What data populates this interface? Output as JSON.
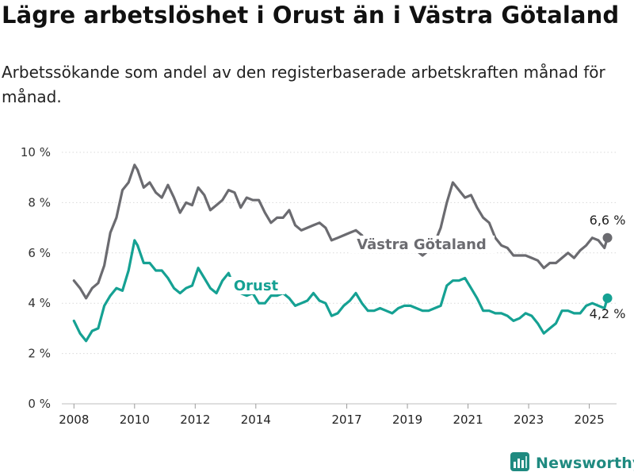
{
  "header": {
    "title": "Lägre arbetslöshet i Orust än i Västra Götaland",
    "subtitle": "Arbetssökande som andel av den registerbaserade arbetskraften månad för månad."
  },
  "brand": {
    "name": "Newsworthy",
    "icon": "bar-chart-logo-icon",
    "color": "#1f8a80"
  },
  "chart_data": {
    "type": "line",
    "title": "Lägre arbetslöshet i Orust än i Västra Götaland",
    "subtitle": "Arbetssökande som andel av den registerbaserade arbetskraften månad för månad.",
    "xlabel": "",
    "ylabel": "",
    "ylim": [
      0,
      10
    ],
    "xlim": [
      2007.6,
      2025.9
    ],
    "y_ticks": [
      {
        "value": 0,
        "label": "0 %"
      },
      {
        "value": 2,
        "label": "2 %"
      },
      {
        "value": 4,
        "label": "4 %"
      },
      {
        "value": 6,
        "label": "6 %"
      },
      {
        "value": 8,
        "label": "8 %"
      },
      {
        "value": 10,
        "label": "10 %"
      }
    ],
    "x_ticks": [
      {
        "value": 2008,
        "label": "2008"
      },
      {
        "value": 2010,
        "label": "2010"
      },
      {
        "value": 2012,
        "label": "2012"
      },
      {
        "value": 2014,
        "label": "2014"
      },
      {
        "value": 2017,
        "label": "2017"
      },
      {
        "value": 2019,
        "label": "2019"
      },
      {
        "value": 2021,
        "label": "2021"
      },
      {
        "value": 2023,
        "label": "2023"
      },
      {
        "value": 2025,
        "label": "2025"
      }
    ],
    "grid": true,
    "series": [
      {
        "name": "Västra Götaland",
        "color": "#6b6b70",
        "end_label": "6,6 %",
        "x": [
          2008.0,
          2008.2,
          2008.4,
          2008.6,
          2008.8,
          2009.0,
          2009.2,
          2009.4,
          2009.6,
          2009.8,
          2010.0,
          2010.1,
          2010.3,
          2010.5,
          2010.7,
          2010.9,
          2011.1,
          2011.3,
          2011.5,
          2011.7,
          2011.9,
          2012.1,
          2012.3,
          2012.5,
          2012.7,
          2012.9,
          2013.1,
          2013.3,
          2013.5,
          2013.7,
          2013.9,
          2014.1,
          2014.3,
          2014.5,
          2014.7,
          2014.9,
          2015.1,
          2015.3,
          2015.5,
          2015.7,
          2015.9,
          2016.1,
          2016.3,
          2016.5,
          2016.7,
          2016.9,
          2017.1,
          2017.3,
          2017.5,
          2017.7,
          2017.9,
          2018.1,
          2018.3,
          2018.5,
          2018.7,
          2018.9,
          2019.1,
          2019.3,
          2019.5,
          2019.7,
          2019.9,
          2020.1,
          2020.3,
          2020.5,
          2020.7,
          2020.9,
          2021.1,
          2021.3,
          2021.5,
          2021.7,
          2021.9,
          2022.1,
          2022.3,
          2022.5,
          2022.7,
          2022.9,
          2023.1,
          2023.3,
          2023.5,
          2023.7,
          2023.9,
          2024.1,
          2024.3,
          2024.5,
          2024.7,
          2024.9,
          2025.1,
          2025.3,
          2025.5,
          2025.6
        ],
        "values": [
          4.9,
          4.6,
          4.2,
          4.6,
          4.8,
          5.5,
          6.8,
          7.4,
          8.5,
          8.8,
          9.5,
          9.3,
          8.6,
          8.8,
          8.4,
          8.2,
          8.7,
          8.2,
          7.6,
          8.0,
          7.9,
          8.6,
          8.3,
          7.7,
          7.9,
          8.1,
          8.5,
          8.4,
          7.8,
          8.2,
          8.1,
          8.1,
          7.6,
          7.2,
          7.4,
          7.4,
          7.7,
          7.1,
          6.9,
          7.0,
          7.1,
          7.2,
          7.0,
          6.5,
          6.6,
          6.7,
          6.8,
          6.9,
          6.7,
          6.2,
          6.2,
          6.5,
          6.6,
          6.1,
          6.2,
          6.1,
          6.3,
          6.1,
          5.9,
          6.1,
          6.4,
          7.0,
          8.0,
          8.8,
          8.5,
          8.2,
          8.3,
          7.8,
          7.4,
          7.2,
          6.6,
          6.3,
          6.2,
          5.9,
          5.9,
          5.9,
          5.8,
          5.7,
          5.4,
          5.6,
          5.6,
          5.8,
          6.0,
          5.8,
          6.1,
          6.3,
          6.6,
          6.5,
          6.2,
          6.6
        ]
      },
      {
        "name": "Orust",
        "color": "#15a193",
        "end_label": "4,2 %",
        "x": [
          2008.0,
          2008.2,
          2008.4,
          2008.6,
          2008.8,
          2009.0,
          2009.2,
          2009.4,
          2009.6,
          2009.8,
          2010.0,
          2010.1,
          2010.3,
          2010.5,
          2010.7,
          2010.9,
          2011.1,
          2011.3,
          2011.5,
          2011.7,
          2011.9,
          2012.1,
          2012.3,
          2012.5,
          2012.7,
          2012.9,
          2013.1,
          2013.3,
          2013.5,
          2013.7,
          2013.9,
          2014.1,
          2014.3,
          2014.5,
          2014.7,
          2014.9,
          2015.1,
          2015.3,
          2015.5,
          2015.7,
          2015.9,
          2016.1,
          2016.3,
          2016.5,
          2016.7,
          2016.9,
          2017.1,
          2017.3,
          2017.5,
          2017.7,
          2017.9,
          2018.1,
          2018.3,
          2018.5,
          2018.7,
          2018.9,
          2019.1,
          2019.3,
          2019.5,
          2019.7,
          2019.9,
          2020.1,
          2020.3,
          2020.5,
          2020.7,
          2020.9,
          2021.1,
          2021.3,
          2021.5,
          2021.7,
          2021.9,
          2022.1,
          2022.3,
          2022.5,
          2022.7,
          2022.9,
          2023.1,
          2023.3,
          2023.5,
          2023.7,
          2023.9,
          2024.1,
          2024.3,
          2024.5,
          2024.7,
          2024.9,
          2025.1,
          2025.3,
          2025.5,
          2025.6
        ],
        "values": [
          3.3,
          2.8,
          2.5,
          2.9,
          3.0,
          3.9,
          4.3,
          4.6,
          4.5,
          5.3,
          6.5,
          6.3,
          5.6,
          5.6,
          5.3,
          5.3,
          5.0,
          4.6,
          4.4,
          4.6,
          4.7,
          5.4,
          5.0,
          4.6,
          4.4,
          4.9,
          5.2,
          4.6,
          4.4,
          4.3,
          4.4,
          4.0,
          4.0,
          4.3,
          4.3,
          4.4,
          4.2,
          3.9,
          4.0,
          4.1,
          4.4,
          4.1,
          4.0,
          3.5,
          3.6,
          3.9,
          4.1,
          4.4,
          4.0,
          3.7,
          3.7,
          3.8,
          3.7,
          3.6,
          3.8,
          3.9,
          3.9,
          3.8,
          3.7,
          3.7,
          3.8,
          3.9,
          4.7,
          4.9,
          4.9,
          5.0,
          4.6,
          4.2,
          3.7,
          3.7,
          3.6,
          3.6,
          3.5,
          3.3,
          3.4,
          3.6,
          3.5,
          3.2,
          2.8,
          3.0,
          3.2,
          3.7,
          3.7,
          3.6,
          3.6,
          3.9,
          4.0,
          3.9,
          3.8,
          4.2
        ]
      }
    ],
    "annotations": [
      {
        "text": "Västra Götaland",
        "series": 0
      },
      {
        "text": "Orust",
        "series": 1
      }
    ]
  }
}
